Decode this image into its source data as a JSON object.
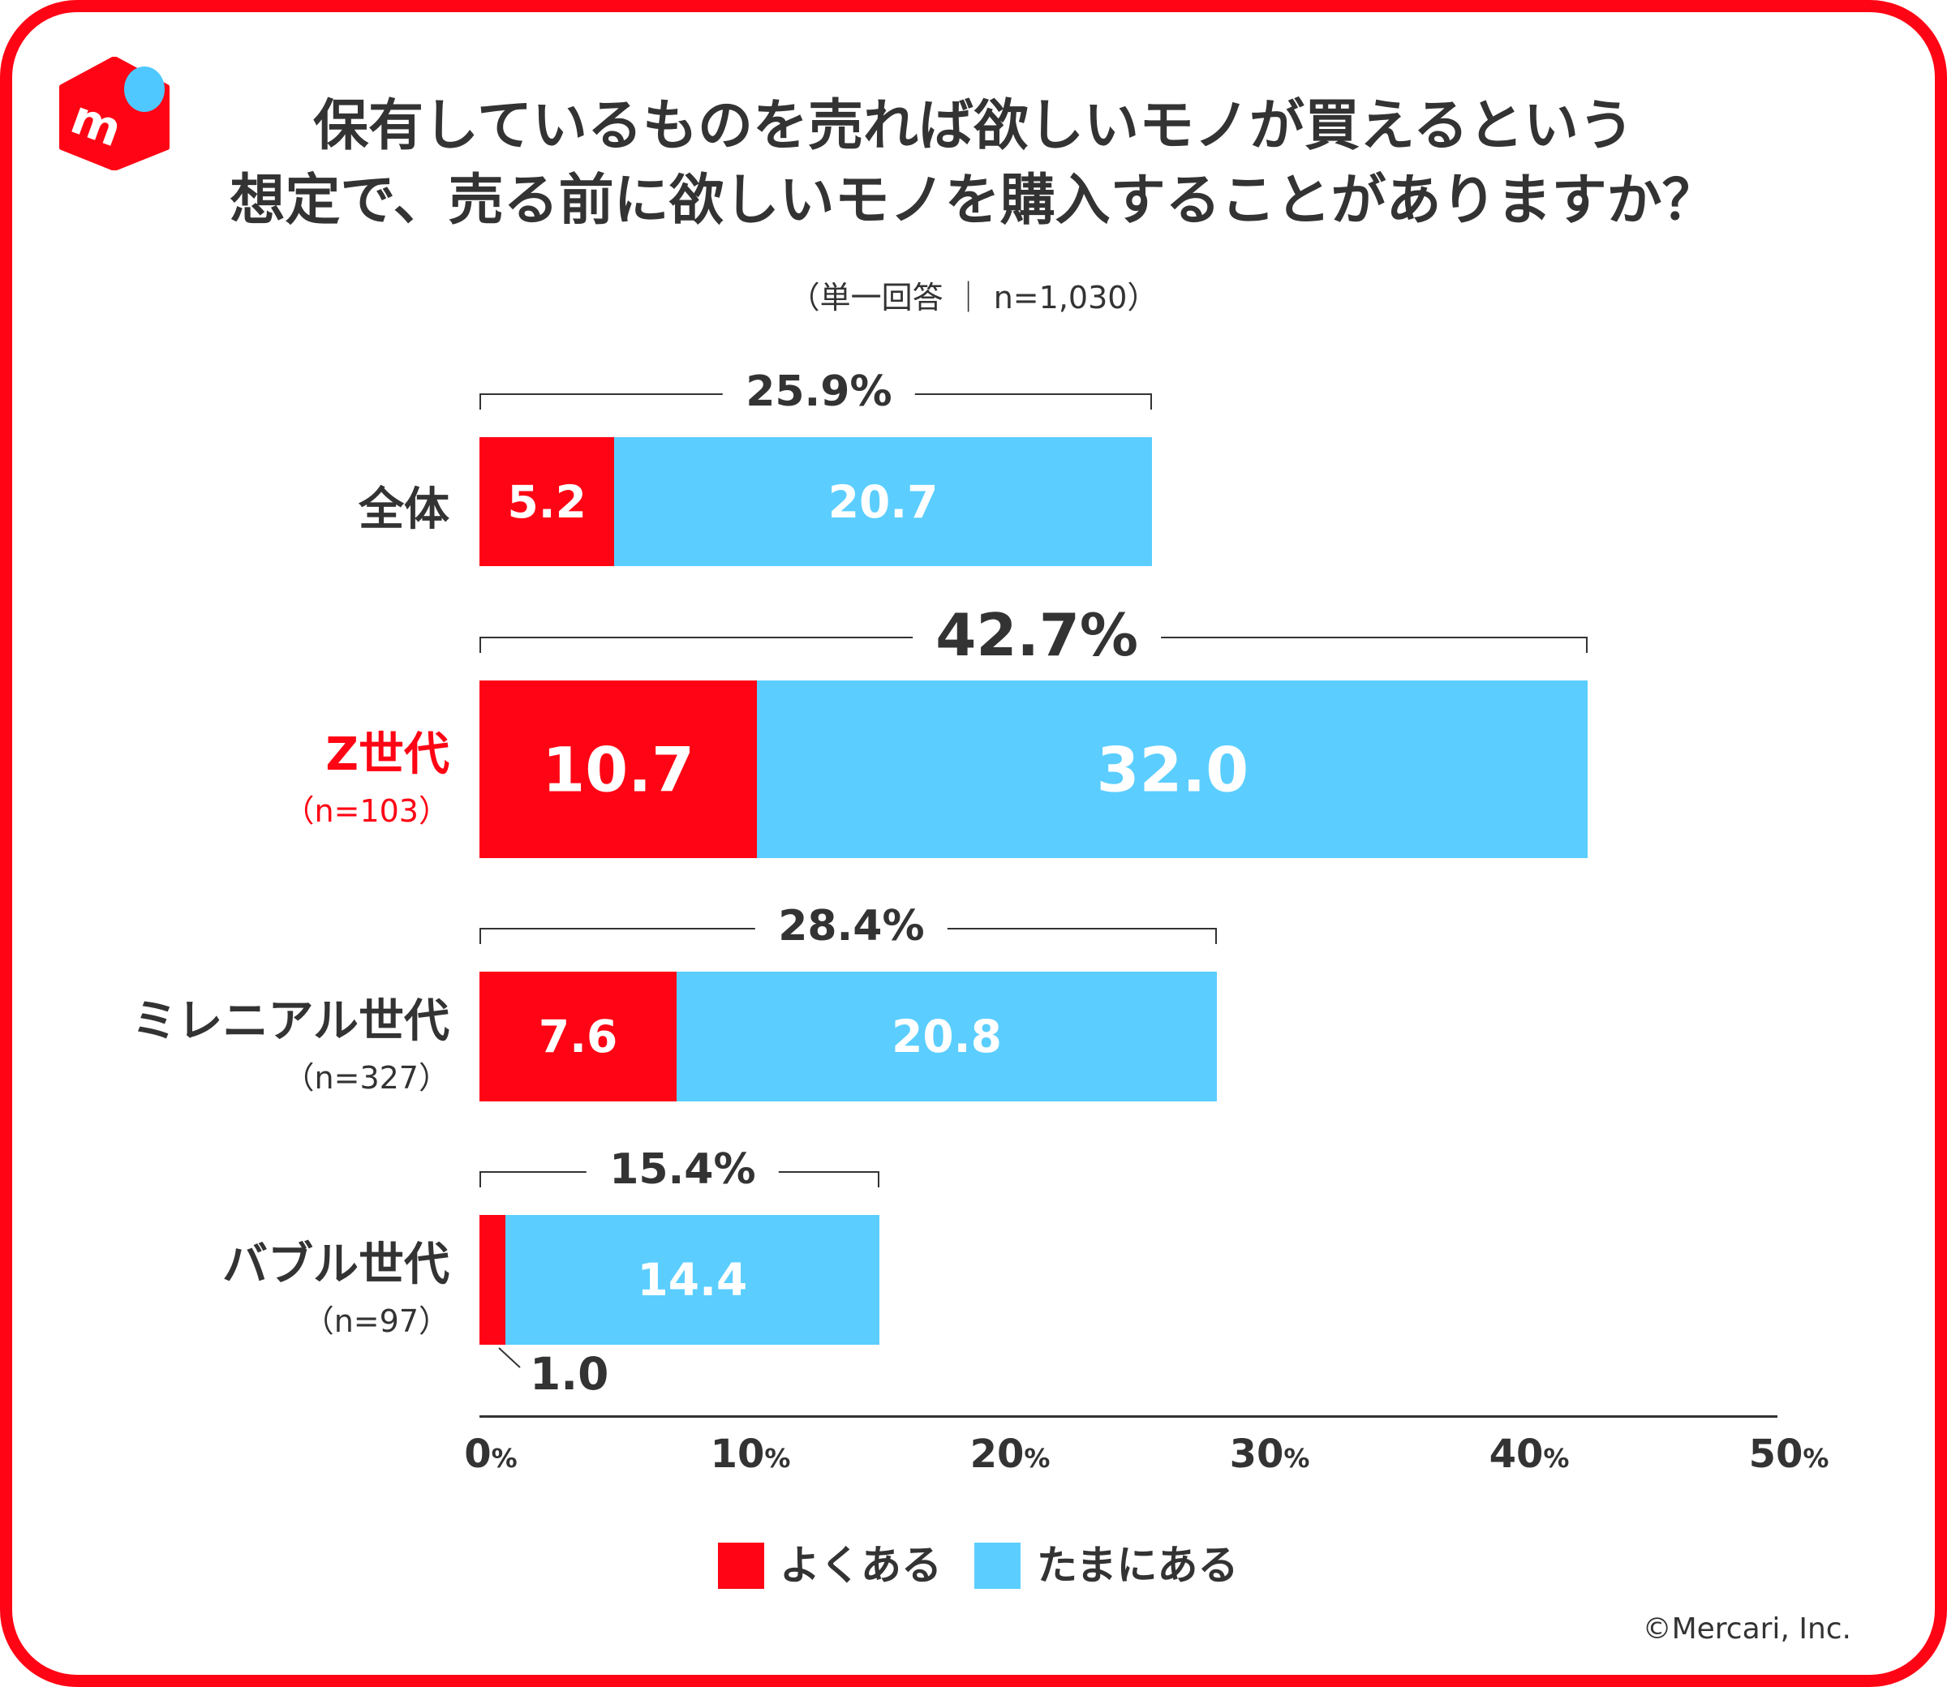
{
  "brand": {
    "logo_letter": "m",
    "logo_red": "#FF0414",
    "logo_blue": "#4FC8FF"
  },
  "title_lines": [
    "保有しているものを売れば欲しいモノが買えるという",
    "想定で、売る前に欲しいモノを購入することがありますか？"
  ],
  "subtitle": "（単一回答 ｜ n=1,030）",
  "chart_data": {
    "type": "bar",
    "orientation": "horizontal",
    "stacked": true,
    "categories": [
      {
        "name": "全体",
        "n": ""
      },
      {
        "name": "Z世代",
        "n": "（n=103）",
        "highlight": true
      },
      {
        "name": "ミレニアル世代",
        "n": "（n=327）"
      },
      {
        "name": "バブル世代",
        "n": "（n=97）"
      }
    ],
    "series": [
      {
        "name": "よくある",
        "color": "#FF0414",
        "values": [
          5.2,
          10.7,
          7.6,
          1.0
        ]
      },
      {
        "name": "たまにある",
        "color": "#5BCEFF",
        "values": [
          20.7,
          32.0,
          20.8,
          14.4
        ]
      }
    ],
    "totals": [
      "25.9%",
      "42.7%",
      "28.4%",
      "15.4%"
    ],
    "xlim": [
      0,
      50
    ],
    "xticks": [
      0,
      10,
      20,
      30,
      40,
      50
    ],
    "tick_unit": "%",
    "legend": "bottom",
    "highlight_color": "#FF0414",
    "text_color": "#333333"
  },
  "copyright": "©Mercari, Inc."
}
